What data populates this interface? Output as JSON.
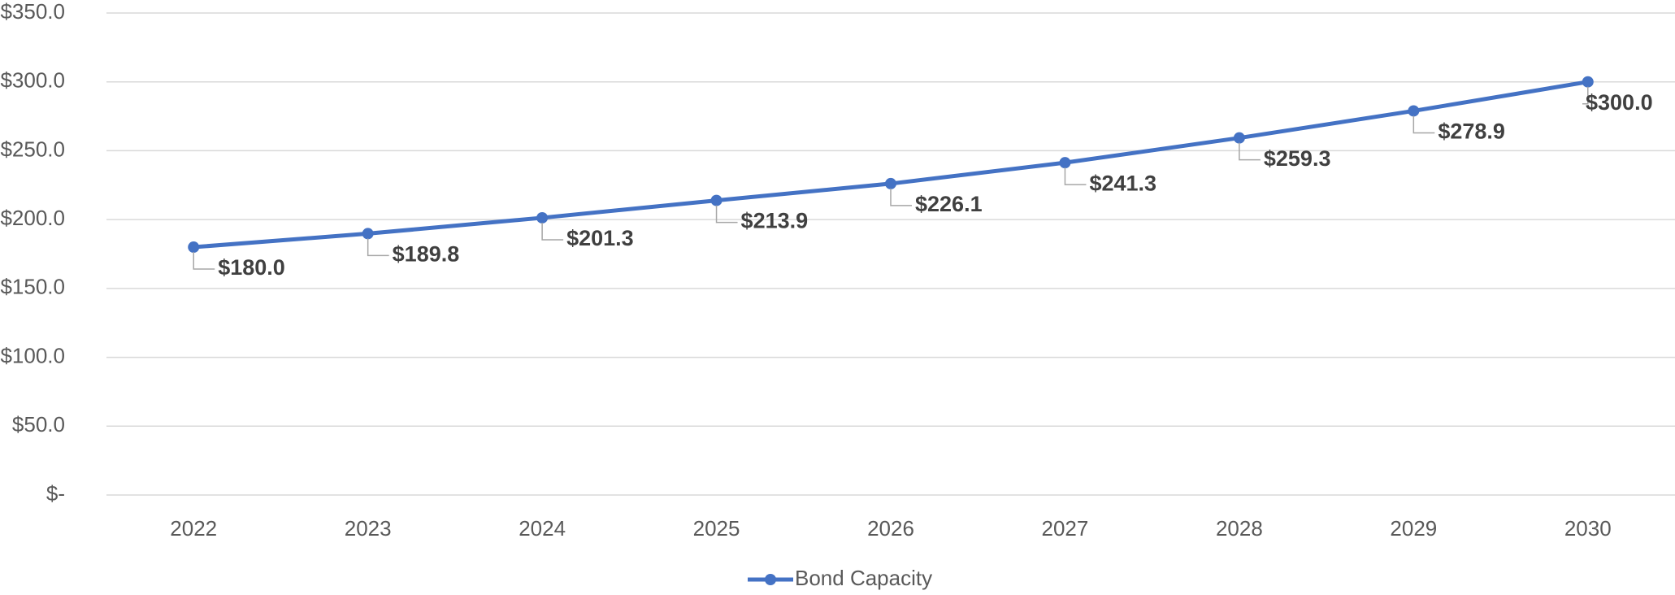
{
  "chart_data": {
    "type": "line",
    "categories": [
      "2022",
      "2023",
      "2024",
      "2025",
      "2026",
      "2027",
      "2028",
      "2029",
      "2030"
    ],
    "series": [
      {
        "name": "Bond Capacity",
        "color": "#4472c4",
        "values": [
          180.0,
          189.8,
          201.3,
          213.9,
          226.1,
          241.3,
          259.3,
          278.9,
          300.0
        ],
        "value_labels": [
          "$180.0",
          "$189.8",
          "$201.3",
          "$213.9",
          "$226.1",
          "$241.3",
          "$259.3",
          "$278.9",
          "$300.0"
        ]
      }
    ],
    "ylim": [
      0,
      350
    ],
    "yticks": [
      {
        "value": 0,
        "label": "$-"
      },
      {
        "value": 50,
        "label": "$50.0"
      },
      {
        "value": 100,
        "label": "$100.0"
      },
      {
        "value": 150,
        "label": "$150.0"
      },
      {
        "value": 200,
        "label": "$200.0"
      },
      {
        "value": 250,
        "label": "$250.0"
      },
      {
        "value": 300,
        "label": "$300.0"
      },
      {
        "value": 350,
        "label": "$350.0"
      }
    ],
    "grid": true,
    "legend": "bottom"
  }
}
